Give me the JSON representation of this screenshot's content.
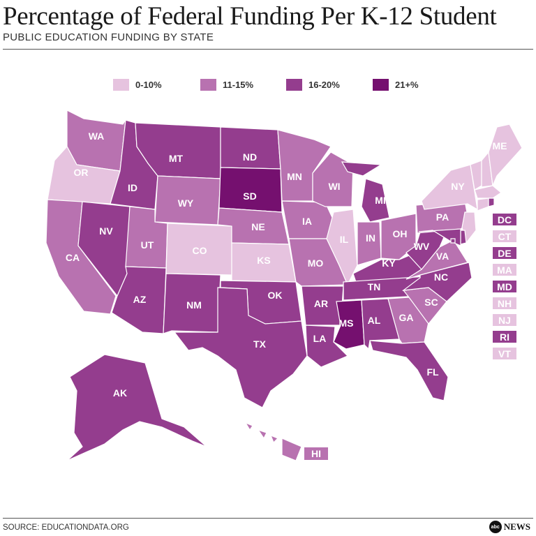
{
  "header": {
    "title": "Percentage of Federal Funding Per K-12 Student",
    "subtitle": "PUBLIC EDUCATION FUNDING BY STATE"
  },
  "colors": {
    "c0": "#e6c3df",
    "c1": "#b872b0",
    "c2": "#943d8e",
    "c3": "#75106f"
  },
  "legend": [
    {
      "label": "0-10%",
      "key": "c0"
    },
    {
      "label": "11-15%",
      "key": "c1"
    },
    {
      "label": "16-20%",
      "key": "c2"
    },
    {
      "label": "21+%",
      "key": "c3"
    }
  ],
  "states": {
    "WA": "c1",
    "OR": "c0",
    "CA": "c1",
    "NV": "c2",
    "ID": "c2",
    "MT": "c2",
    "WY": "c1",
    "UT": "c1",
    "AZ": "c2",
    "CO": "c0",
    "NM": "c2",
    "ND": "c2",
    "SD": "c3",
    "NE": "c1",
    "KS": "c0",
    "OK": "c2",
    "TX": "c2",
    "MN": "c1",
    "IA": "c1",
    "MO": "c1",
    "AR": "c2",
    "LA": "c2",
    "WI": "c1",
    "IL": "c0",
    "MI": "c2",
    "IN": "c1",
    "OH": "c1",
    "KY": "c2",
    "TN": "c2",
    "MS": "c3",
    "AL": "c2",
    "GA": "c1",
    "FL": "c2",
    "SC": "c1",
    "NC": "c2",
    "VA": "c1",
    "WV": "c2",
    "PA": "c1",
    "NY": "c0",
    "ME": "c0",
    "AK": "c2",
    "HI": "c1",
    "DC": "c2",
    "CT": "c0",
    "DE": "c2",
    "MA": "c0",
    "MD": "c2",
    "NH": "c0",
    "NJ": "c0",
    "RI": "c2",
    "VT": "c0"
  },
  "small_states": [
    "DC",
    "CT",
    "DE",
    "MA",
    "MD",
    "NH",
    "NJ",
    "RI",
    "VT"
  ],
  "footer": {
    "source": "SOURCE: EDUCATIONDATA.ORG",
    "logo_mark": "abc",
    "logo_word": "NEWS"
  }
}
